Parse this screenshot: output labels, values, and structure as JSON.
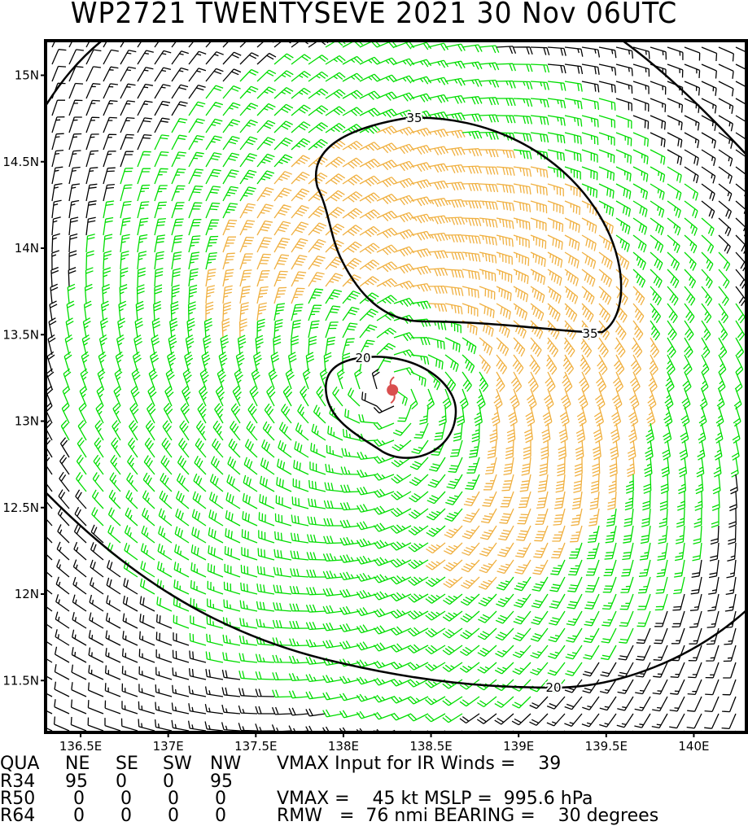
{
  "title": "WP2721 TWENTYSEVE 2021 30 Nov 06UTC",
  "map": {
    "lon_range": [
      136.3,
      140.3
    ],
    "lat_range": [
      11.2,
      15.2
    ],
    "lon_ticks": [
      {
        "v": 136.5,
        "label": "136.5E"
      },
      {
        "v": 137,
        "label": "137E"
      },
      {
        "v": 137.5,
        "label": "137.5E"
      },
      {
        "v": 138,
        "label": "138E"
      },
      {
        "v": 138.5,
        "label": "138.5E"
      },
      {
        "v": 139,
        "label": "139E"
      },
      {
        "v": 139.5,
        "label": "139.5E"
      },
      {
        "v": 140,
        "label": "140E"
      }
    ],
    "lat_ticks": [
      {
        "v": 11.5,
        "label": "11.5N"
      },
      {
        "v": 12,
        "label": "12N"
      },
      {
        "v": 12.5,
        "label": "12.5N"
      },
      {
        "v": 13,
        "label": "13N"
      },
      {
        "v": 13.5,
        "label": "13.5N"
      },
      {
        "v": 14,
        "label": "14N"
      },
      {
        "v": 14.5,
        "label": "14.5N"
      },
      {
        "v": 15,
        "label": "15N"
      }
    ],
    "center": {
      "lon": 138.28,
      "lat": 13.18
    },
    "contour_labels": [
      "35",
      "35",
      "20",
      "20"
    ],
    "colors": {
      "low": "#000000",
      "mid": "#00dd00",
      "high": "#f0b040",
      "center": "#d94f4f"
    }
  },
  "table": {
    "header": [
      "QUA",
      "NE",
      "SE",
      "SW",
      "NW"
    ],
    "rows": [
      [
        "R34",
        "95",
        "0",
        "0",
        "95"
      ],
      [
        "R50",
        "0",
        "0",
        "0",
        "0"
      ],
      [
        "R64",
        "0",
        "0",
        "0",
        "0"
      ]
    ],
    "line1": "VMAX Input for IR Winds =    39",
    "line3": "VMAX =    45 kt MSLP =  995.6 hPa",
    "line4": "RMW   =  76 nmi BEARING =    30 degrees"
  }
}
